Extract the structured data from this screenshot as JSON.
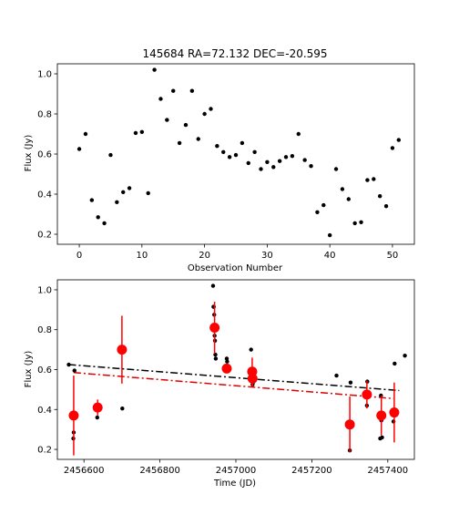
{
  "chart_data": [
    {
      "type": "scatter",
      "title": "145684 RA=72.132 DEC=-20.595",
      "xlabel": "Observation Number",
      "ylabel": "Flux (Jy)",
      "xlim": [
        -3.5,
        53.5
      ],
      "ylim": [
        0.15,
        1.05
      ],
      "xticks": [
        0,
        10,
        20,
        30,
        40,
        50
      ],
      "xtick_labels": [
        "0",
        "10",
        "20",
        "30",
        "40",
        "50"
      ],
      "yticks": [
        0.2,
        0.4,
        0.6,
        0.8,
        1.0
      ],
      "ytick_labels": [
        "0.2",
        "0.4",
        "0.6",
        "0.8",
        "1.0"
      ],
      "grid": false,
      "series": [
        {
          "color": "#000000",
          "marker": "dot",
          "x": [
            0,
            1,
            2,
            3,
            4,
            5,
            6,
            7,
            8,
            9,
            10,
            11,
            12,
            13,
            14,
            15,
            16,
            17,
            18,
            19,
            20,
            21,
            22,
            23,
            24,
            25,
            26,
            27,
            28,
            29,
            30,
            31,
            32,
            33,
            34,
            35,
            36,
            37,
            38,
            39,
            40,
            41,
            42,
            43,
            44,
            45,
            46,
            47,
            48,
            49,
            50,
            51
          ],
          "y": [
            0.625,
            0.7,
            0.37,
            0.285,
            0.255,
            0.595,
            0.36,
            0.41,
            0.43,
            0.705,
            0.71,
            0.405,
            1.02,
            0.875,
            0.77,
            0.915,
            0.655,
            0.745,
            0.915,
            0.675,
            0.8,
            0.825,
            0.64,
            0.61,
            0.585,
            0.595,
            0.655,
            0.555,
            0.61,
            0.525,
            0.56,
            0.535,
            0.565,
            0.585,
            0.59,
            0.7,
            0.57,
            0.54,
            0.31,
            0.345,
            0.195,
            0.525,
            0.425,
            0.375,
            0.255,
            0.26,
            0.47,
            0.475,
            0.39,
            0.34,
            0.63,
            0.67
          ]
        }
      ]
    },
    {
      "type": "scatter",
      "title": "",
      "xlabel": "Time (JD)",
      "ylabel": "Flux (Jy)",
      "xlim": [
        2456530,
        2457470
      ],
      "ylim": [
        0.15,
        1.05
      ],
      "xticks": [
        2456600,
        2456800,
        2457000,
        2457200,
        2457400
      ],
      "xtick_labels": [
        "2456600",
        "2456800",
        "2457000",
        "2457200",
        "2457400"
      ],
      "yticks": [
        0.2,
        0.4,
        0.6,
        0.8,
        1.0
      ],
      "ytick_labels": [
        "0.2",
        "0.4",
        "0.6",
        "0.8",
        "1.0"
      ],
      "grid": false,
      "series": [
        {
          "color": "#000000",
          "marker": "dot",
          "x": [
            2456560,
            2456572,
            2456573,
            2456575,
            2456635,
            2456637,
            2456698,
            2456701,
            2456940,
            2456941,
            2456942,
            2456943,
            2456944,
            2456945,
            2456946,
            2456947,
            2456975,
            2456976,
            2456977,
            2457040,
            2457041,
            2457042,
            2457043,
            2457044,
            2457045,
            2457265,
            2457300,
            2457302,
            2457345,
            2457346,
            2457380,
            2457382,
            2457383,
            2457385,
            2457415,
            2457418,
            2457445
          ],
          "y": [
            0.625,
            0.255,
            0.285,
            0.595,
            0.36,
            0.41,
            0.705,
            0.405,
            1.02,
            0.915,
            0.915,
            0.875,
            0.77,
            0.745,
            0.675,
            0.655,
            0.61,
            0.655,
            0.64,
            0.7,
            0.59,
            0.585,
            0.555,
            0.525,
            0.535,
            0.57,
            0.195,
            0.535,
            0.42,
            0.54,
            0.255,
            0.47,
            0.345,
            0.26,
            0.34,
            0.63,
            0.67
          ]
        },
        {
          "color": "#ff0000",
          "marker": "large-dot",
          "x": [
            2456573,
            2456636,
            2456700,
            2456944,
            2456976,
            2457043,
            2457044,
            2457300,
            2457345,
            2457383,
            2457417
          ],
          "y": [
            0.37,
            0.41,
            0.7,
            0.81,
            0.605,
            0.59,
            0.555,
            0.325,
            0.475,
            0.37,
            0.385
          ],
          "err": [
            0.2,
            0.04,
            0.17,
            0.13,
            0.02,
            0.07,
            0.04,
            0.14,
            0.07,
            0.1,
            0.15
          ]
        }
      ],
      "lines": [
        {
          "color": "#000000",
          "style": "dash-dot",
          "x": [
            2456560,
            2457430
          ],
          "y": [
            0.625,
            0.495
          ]
        },
        {
          "color": "#dd0000",
          "style": "dash-dot",
          "x": [
            2456573,
            2457415
          ],
          "y": [
            0.585,
            0.455
          ]
        }
      ]
    }
  ]
}
